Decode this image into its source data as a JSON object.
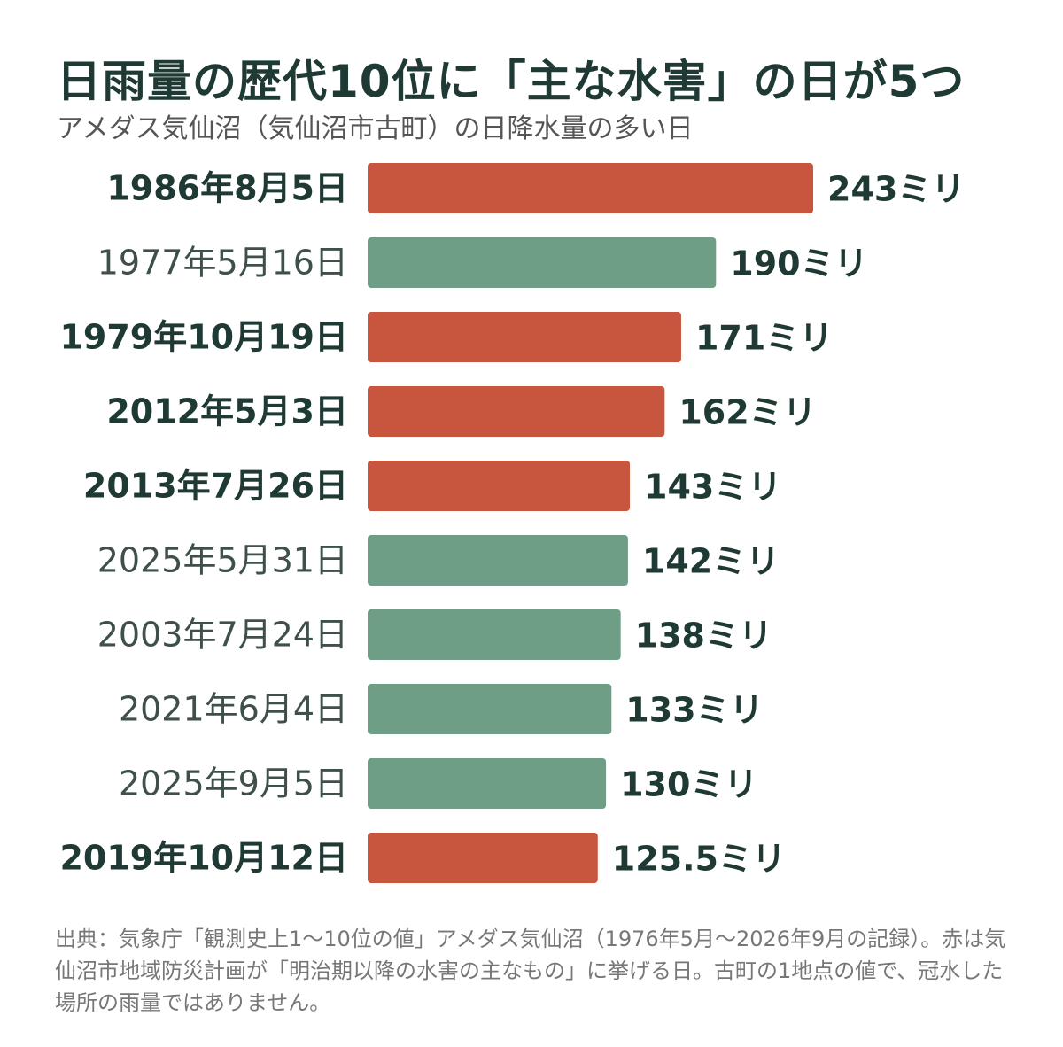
{
  "title": "日雨量の歴代10位に「主な水害」の日が5つ",
  "subtitle": "アメダス気仙沼（気仙沼市古町）の日降水量の多い日",
  "source": "出典：気象庁「観測史上1〜10位の値」アメダス気仙沼（1976年5月〜2026年9月の記録）。赤は気仙沼市地域防災計画が「明治期以降の水害の主なもの」に挙げる日。古町の1地点の値で、冠水した場所の雨量ではありません。",
  "colors": {
    "highlight": "#c8553d",
    "normal": "#6e9e85",
    "text": "#1f3a34"
  },
  "chart_data": {
    "type": "bar",
    "orientation": "horizontal",
    "unit_suffix": "ミリ",
    "categories": [
      "1986年8月5日",
      "1977年5月16日",
      "1979年10月19日",
      "2012年5月3日",
      "2013年7月26日",
      "2025年5月31日",
      "2003年7月24日",
      "2021年6月4日",
      "2025年9月5日",
      "2019年10月12日"
    ],
    "values": [
      243,
      190,
      171,
      162,
      143,
      142,
      138,
      133,
      130,
      125.5
    ],
    "value_labels": [
      "243ミリ",
      "190ミリ",
      "171ミリ",
      "162ミリ",
      "143ミリ",
      "142ミリ",
      "138ミリ",
      "133ミリ",
      "130ミリ",
      "125.5ミリ"
    ],
    "highlighted": [
      true,
      false,
      true,
      true,
      true,
      false,
      false,
      false,
      false,
      true
    ],
    "xlim": [
      0,
      243
    ],
    "grid": false,
    "legend": "none"
  }
}
